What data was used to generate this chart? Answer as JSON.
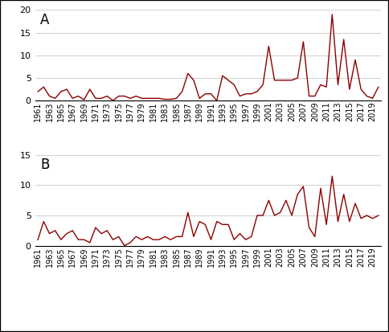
{
  "years": [
    1961,
    1962,
    1963,
    1964,
    1965,
    1966,
    1967,
    1968,
    1969,
    1970,
    1971,
    1972,
    1973,
    1974,
    1975,
    1976,
    1977,
    1978,
    1979,
    1980,
    1981,
    1982,
    1983,
    1984,
    1985,
    1986,
    1987,
    1988,
    1989,
    1990,
    1991,
    1992,
    1993,
    1994,
    1995,
    1996,
    1997,
    1998,
    1999,
    2000,
    2001,
    2002,
    2003,
    2004,
    2005,
    2006,
    2007,
    2008,
    2009,
    2010,
    2011,
    2012,
    2013,
    2014,
    2015,
    2016,
    2017,
    2018,
    2019,
    2020
  ],
  "series_A": [
    2.0,
    3.0,
    1.0,
    0.5,
    2.0,
    2.5,
    0.5,
    1.0,
    0.2,
    2.5,
    0.5,
    0.5,
    1.0,
    0.0,
    1.0,
    1.0,
    0.5,
    1.0,
    0.5,
    0.5,
    0.5,
    0.5,
    0.3,
    0.3,
    0.5,
    2.0,
    6.0,
    4.5,
    0.5,
    1.5,
    1.5,
    0.0,
    5.5,
    4.5,
    3.5,
    1.0,
    1.5,
    1.5,
    2.0,
    3.5,
    12.0,
    4.5,
    4.5,
    4.5,
    4.5,
    5.0,
    13.0,
    1.0,
    1.0,
    3.5,
    3.0,
    19.0,
    3.5,
    13.5,
    2.5,
    9.0,
    2.5,
    1.0,
    0.5,
    3.0
  ],
  "series_B": [
    1.0,
    4.0,
    2.0,
    2.5,
    1.0,
    2.0,
    2.5,
    1.0,
    1.0,
    0.5,
    3.0,
    2.0,
    2.5,
    1.0,
    1.5,
    0.0,
    0.5,
    1.5,
    1.0,
    1.5,
    1.0,
    1.0,
    1.5,
    1.0,
    1.5,
    1.5,
    5.5,
    1.5,
    4.0,
    3.5,
    1.0,
    4.0,
    3.5,
    3.5,
    1.0,
    2.0,
    1.0,
    1.5,
    5.0,
    5.0,
    7.5,
    5.0,
    5.5,
    7.5,
    5.0,
    8.5,
    9.8,
    3.0,
    1.5,
    9.5,
    3.5,
    11.5,
    4.0,
    8.5,
    4.0,
    7.0,
    4.5,
    5.0,
    4.5,
    5.0
  ],
  "color": "#8B0000",
  "label_A": "A",
  "label_B": "B",
  "ylim_A": [
    0,
    20
  ],
  "ylim_B": [
    0,
    15
  ],
  "yticks_A": [
    0,
    5,
    10,
    15,
    20
  ],
  "yticks_B": [
    0,
    5,
    10,
    15
  ],
  "xtick_years": [
    1961,
    1963,
    1965,
    1967,
    1969,
    1971,
    1973,
    1975,
    1977,
    1979,
    1981,
    1983,
    1985,
    1987,
    1989,
    1991,
    1993,
    1995,
    1997,
    1999,
    2001,
    2003,
    2005,
    2007,
    2009,
    2011,
    2013,
    2015,
    2017,
    2019
  ],
  "fig_border_color": "#000000",
  "grid_color": "#d3d3d3"
}
